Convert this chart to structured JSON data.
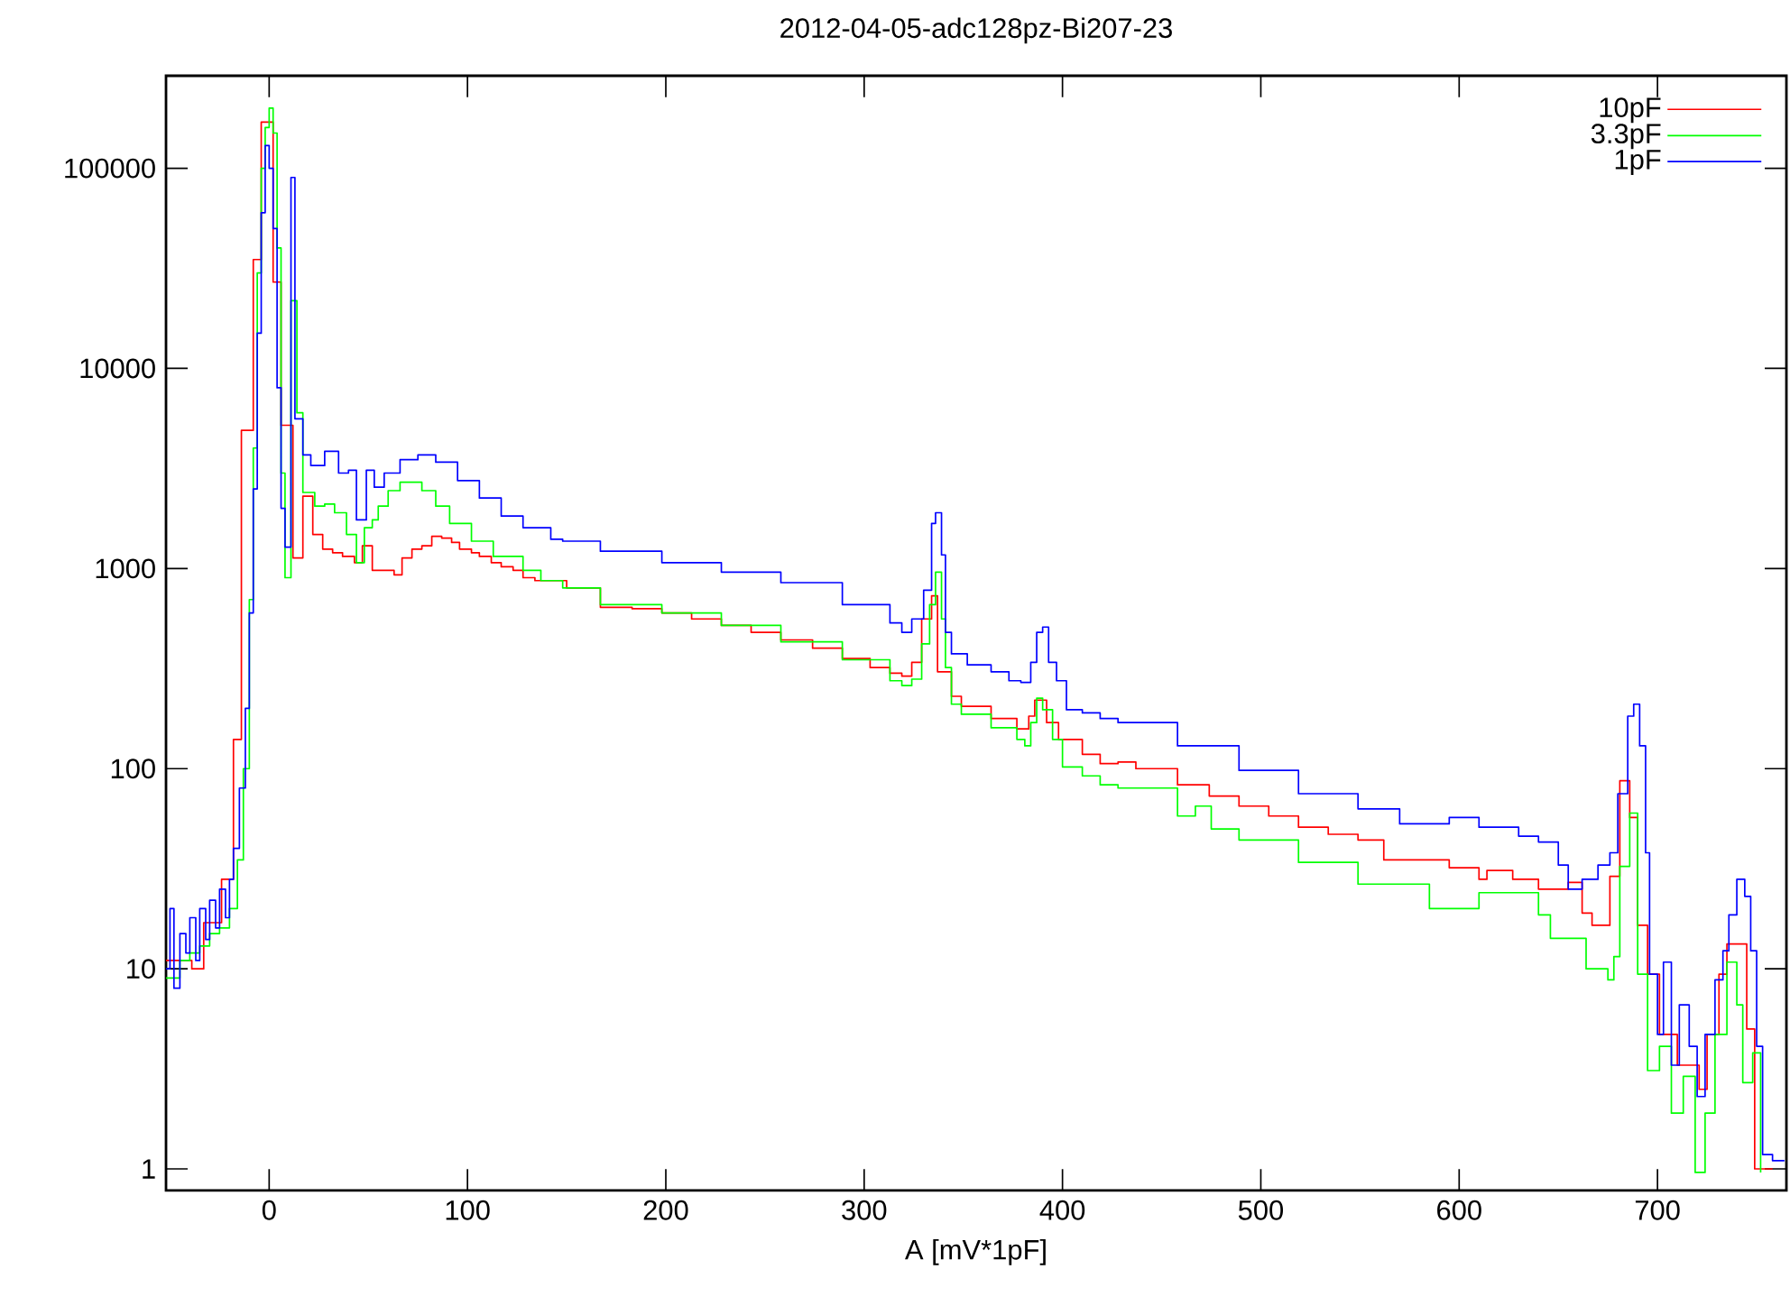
{
  "chart_data": {
    "type": "step",
    "title": "2012-04-05-adc128pz-Bi207-23",
    "xlabel": "A [mV*1pF]",
    "log": "y",
    "legend": "top right",
    "xlim": [
      -52,
      765
    ],
    "ylim": [
      0.78,
      290000
    ],
    "xticks": [
      0,
      100,
      200,
      300,
      400,
      500,
      600,
      700
    ],
    "yticks": [
      1,
      10,
      100,
      1000,
      10000,
      100000
    ],
    "series": [
      {
        "name": "10pF",
        "color": "#ff0000",
        "x": [
          -52,
          -39,
          -33,
          -24,
          -18,
          -14,
          -8,
          -4,
          2,
          6,
          12,
          17,
          22,
          27,
          32,
          37,
          43,
          47,
          52,
          57,
          63,
          67,
          72,
          77,
          82,
          87,
          92,
          96,
          102,
          106,
          112,
          117,
          123,
          128,
          134,
          150,
          167,
          183,
          198,
          213,
          228,
          243,
          258,
          274,
          289,
          303,
          313,
          319,
          324,
          329,
          334,
          337,
          344,
          349,
          364,
          377,
          383,
          386,
          392,
          398,
          410,
          419,
          428,
          437,
          458,
          474,
          489,
          504,
          519,
          534,
          549,
          562,
          580,
          595,
          610,
          614,
          627,
          640,
          655,
          662,
          667,
          676,
          681,
          686,
          690,
          695,
          701,
          710,
          721,
          725,
          731,
          735,
          745,
          749,
          758
        ],
        "values": [
          11,
          10,
          17,
          28,
          140,
          4900,
          35000,
          170000,
          27000,
          5200,
          1130,
          2300,
          1480,
          1250,
          1200,
          1150,
          1070,
          1300,
          980,
          980,
          930,
          1130,
          1250,
          1300,
          1450,
          1420,
          1350,
          1250,
          1200,
          1150,
          1070,
          1020,
          980,
          900,
          870,
          800,
          640,
          630,
          600,
          560,
          520,
          480,
          440,
          400,
          355,
          320,
          300,
          290,
          340,
          560,
          730,
          305,
          230,
          205,
          178,
          158,
          183,
          220,
          170,
          140,
          118,
          106,
          108,
          100,
          83,
          73,
          65,
          58,
          51,
          47,
          44,
          35,
          35,
          32,
          28,
          31,
          28,
          25,
          27,
          19,
          16.5,
          29,
          87,
          57,
          16.5,
          9.4,
          4.7,
          3.3,
          2.5,
          4.7,
          9.4,
          13.3,
          5,
          1,
          1
        ]
      },
      {
        "name": "3.3pF",
        "color": "#00ff00",
        "x": [
          -52,
          -45,
          -40,
          -35,
          -30,
          -25,
          -20,
          -16,
          -13,
          -10,
          -8,
          -6,
          -4,
          -2,
          0,
          2,
          4,
          6,
          8,
          11,
          14,
          17,
          23,
          28,
          33,
          39,
          44,
          48,
          52,
          55,
          60,
          66,
          71,
          77,
          84,
          91,
          102,
          113,
          128,
          137,
          148,
          167,
          198,
          228,
          258,
          289,
          313,
          319,
          324,
          329,
          333,
          336,
          339,
          341,
          344,
          349,
          364,
          377,
          381,
          384,
          387,
          390,
          395,
          400,
          410,
          419,
          428,
          458,
          467,
          475,
          489,
          519,
          549,
          585,
          610,
          640,
          646,
          664,
          675,
          678,
          681,
          686,
          690,
          695,
          701,
          707,
          713,
          719,
          724,
          729,
          735,
          740,
          743,
          748,
          752
        ],
        "values": [
          9,
          11,
          12,
          13,
          15,
          16,
          20,
          35,
          100,
          700,
          4000,
          30000,
          100000,
          160000,
          200000,
          150000,
          40000,
          3000,
          900,
          21800,
          6000,
          2400,
          2050,
          2100,
          1900,
          1480,
          1070,
          1600,
          1750,
          2050,
          2450,
          2700,
          2700,
          2450,
          2050,
          1680,
          1370,
          1150,
          980,
          870,
          800,
          660,
          600,
          520,
          430,
          350,
          275,
          260,
          280,
          420,
          660,
          960,
          560,
          320,
          210,
          187,
          160,
          140,
          130,
          170,
          225,
          197,
          140,
          102,
          92,
          83,
          80,
          58,
          65,
          50,
          44,
          34,
          26.5,
          20,
          24,
          18.6,
          14.2,
          10,
          8.8,
          11.5,
          32.5,
          60,
          9.4,
          3.1,
          4.1,
          1.9,
          2.9,
          0.96,
          1.9,
          4.7,
          10.8,
          6.6,
          2.7,
          3.8,
          0.96
        ]
      },
      {
        "name": "1pF",
        "color": "#0000ff",
        "x": [
          -52,
          -50,
          -48,
          -45,
          -42,
          -40,
          -37,
          -35,
          -32,
          -30,
          -27,
          -25,
          -22,
          -20,
          -18,
          -15,
          -12,
          -10,
          -8,
          -6,
          -4,
          -2,
          0,
          2,
          4,
          6,
          8,
          11,
          13,
          17,
          21,
          28,
          35,
          40,
          44,
          49,
          53,
          58,
          66,
          75,
          84,
          95,
          106,
          117,
          128,
          142,
          148,
          167,
          198,
          228,
          258,
          289,
          313,
          319,
          324,
          330,
          334,
          336,
          339,
          341,
          344,
          352,
          364,
          373,
          379,
          384,
          387,
          390,
          393,
          397,
          402,
          410,
          419,
          428,
          458,
          489,
          519,
          549,
          570,
          595,
          610,
          630,
          640,
          650,
          655,
          662,
          670,
          676,
          680,
          685,
          688,
          691,
          694,
          696,
          700,
          703,
          707,
          711,
          716,
          720,
          724,
          729,
          733,
          736,
          740,
          744,
          747,
          750,
          753,
          758,
          764
        ],
        "values": [
          10,
          20,
          8,
          15,
          12,
          18,
          11,
          20,
          14,
          22,
          16,
          25,
          18,
          28,
          40,
          80,
          200,
          600,
          2500,
          15000,
          60000,
          130000,
          100000,
          50000,
          8000,
          2000,
          1280,
          90000,
          5600,
          3700,
          3270,
          3850,
          3000,
          3100,
          1750,
          3100,
          2550,
          3000,
          3500,
          3700,
          3400,
          2750,
          2250,
          1830,
          1600,
          1400,
          1370,
          1220,
          1070,
          960,
          850,
          660,
          535,
          480,
          560,
          780,
          1680,
          1900,
          1170,
          480,
          375,
          330,
          305,
          275,
          270,
          340,
          480,
          510,
          340,
          275,
          197,
          190,
          178,
          170,
          130,
          98,
          75,
          63,
          53,
          57,
          51,
          46,
          43,
          33,
          25,
          28,
          33,
          38,
          75,
          183,
          210,
          130,
          38,
          9.4,
          4.7,
          10.8,
          3.3,
          6.6,
          4.1,
          2.3,
          4.7,
          8.8,
          12.3,
          18.6,
          28,
          23,
          12.3,
          4.1,
          1.18,
          1.1,
          1.1
        ]
      }
    ]
  }
}
